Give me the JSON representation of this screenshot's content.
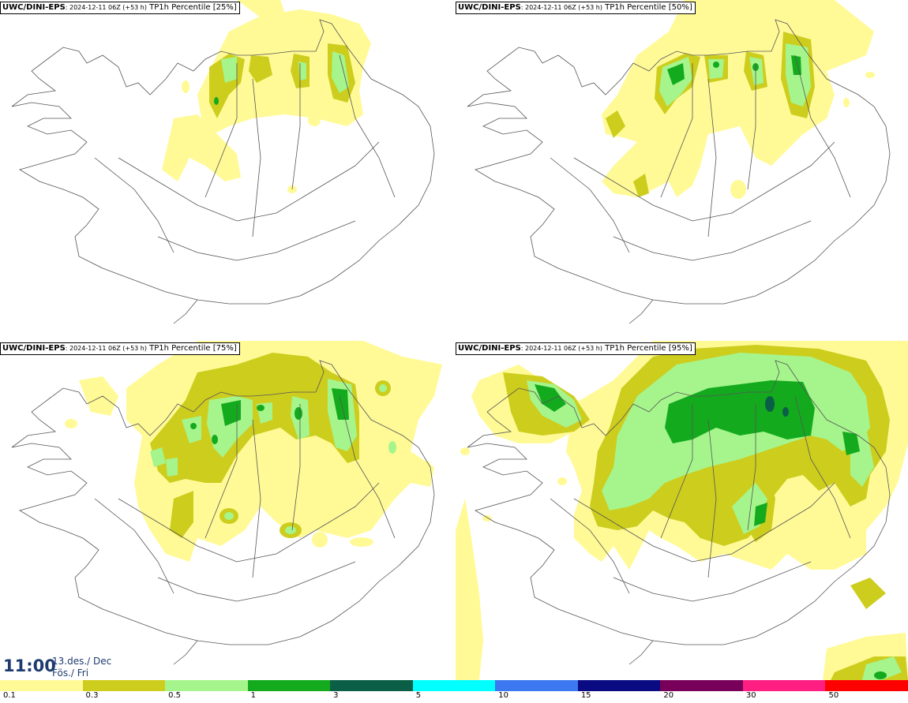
{
  "panels": [
    {
      "model": "UWC/DINI-EPS",
      "run": ": 2024-12-11 06Z (+53 h)",
      "desc": " TP1h Percentile [25%]"
    },
    {
      "model": "UWC/DINI-EPS",
      "run": ": 2024-12-11 06Z (+53 h)",
      "desc": " TP1h Percentile [50%]"
    },
    {
      "model": "UWC/DINI-EPS",
      "run": ": 2024-12-11 06Z (+53 h)",
      "desc": " TP1h Percentile [75%]"
    },
    {
      "model": "UWC/DINI-EPS",
      "run": ": 2024-12-11 06Z (+53 h)",
      "desc": " TP1h Percentile [95%]"
    }
  ],
  "valid_time": {
    "time": "11:00",
    "date_line1": "13.des./ Dec",
    "date_line2": "Fös./ Fri"
  },
  "colorbar": {
    "labels": [
      "0.1",
      "0.3",
      "0.5",
      "1",
      "3",
      "5",
      "10",
      "15",
      "20",
      "30",
      "50"
    ],
    "colors": [
      "#fffa96",
      "#cdcd1e",
      "#a5f58c",
      "#14aa1e",
      "#0a5f46",
      "#00ffff",
      "#3c78f0",
      "#0a0a82",
      "#78005a",
      "#ff1e82",
      "#ff0000"
    ]
  }
}
